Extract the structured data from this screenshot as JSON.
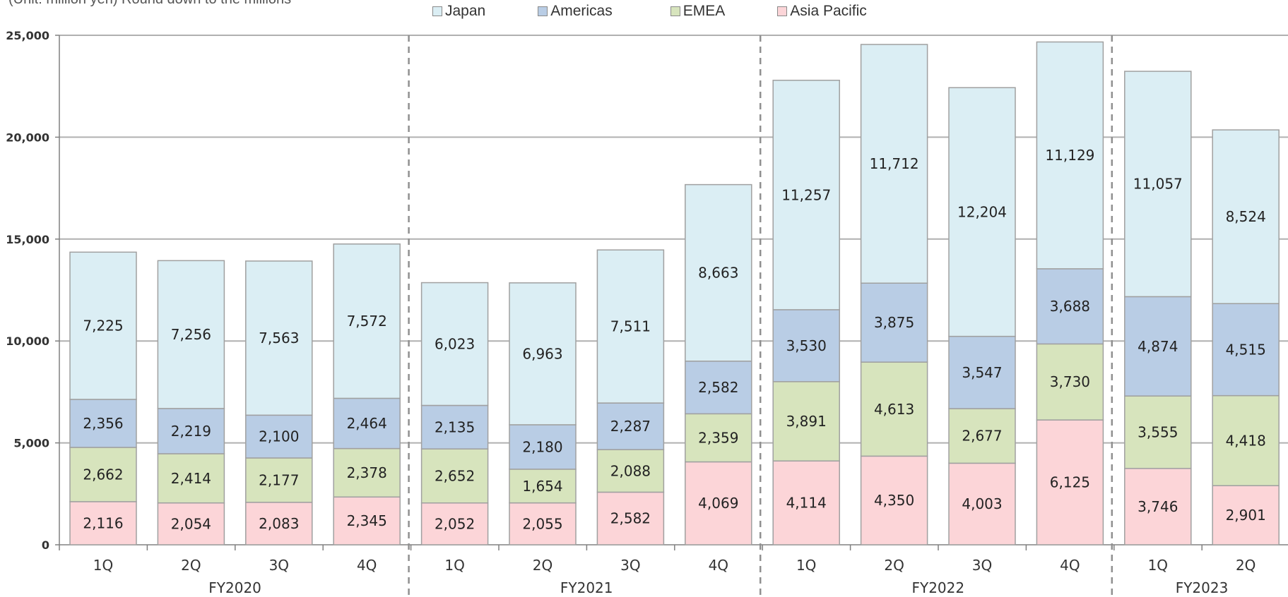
{
  "unit_note": "(Unit: million yen) Round down to the millions",
  "legend": [
    {
      "label": "Japan",
      "color": "#dbeef4"
    },
    {
      "label": "Americas",
      "color": "#b9cde5"
    },
    {
      "label": "EMEA",
      "color": "#d7e4bd"
    },
    {
      "label": "Asia Pacific",
      "color": "#fcd5d8"
    }
  ],
  "chart_data": {
    "type": "bar",
    "stacked": true,
    "title": "",
    "xlabel": "",
    "ylabel": "",
    "ylim": [
      0,
      25000
    ],
    "yticks": [
      "0",
      "5,000",
      "10,000",
      "15,000",
      "20,000",
      "25,000"
    ],
    "grid": true,
    "legend_position": "top",
    "groups": [
      {
        "label": "FY2020",
        "quarters": [
          "1Q",
          "2Q",
          "3Q",
          "4Q"
        ]
      },
      {
        "label": "FY2021",
        "quarters": [
          "1Q",
          "2Q",
          "3Q",
          "4Q"
        ]
      },
      {
        "label": "FY2022",
        "quarters": [
          "1Q",
          "2Q",
          "3Q",
          "4Q"
        ]
      },
      {
        "label": "FY2023",
        "quarters": [
          "1Q",
          "2Q"
        ]
      }
    ],
    "series": [
      {
        "name": "Asia Pacific",
        "color": "#fcd5d8",
        "values": [
          2116,
          2054,
          2083,
          2345,
          2052,
          2055,
          2582,
          4069,
          4114,
          4350,
          4003,
          6125,
          3746,
          2901
        ],
        "labels": [
          "2,116",
          "2,054",
          "2,083",
          "2,345",
          "2,052",
          "2,055",
          "2,582",
          "4,069",
          "4,114",
          "4,350",
          "4,003",
          "6,125",
          "3,746",
          "2,901"
        ]
      },
      {
        "name": "EMEA",
        "color": "#d7e4bd",
        "values": [
          2662,
          2414,
          2177,
          2378,
          2652,
          1654,
          2088,
          2359,
          3891,
          4613,
          2677,
          3730,
          3555,
          4418
        ],
        "labels": [
          "2,662",
          "2,414",
          "2,177",
          "2,378",
          "2,652",
          "1,654",
          "2,088",
          "2,359",
          "3,891",
          "4,613",
          "2,677",
          "3,730",
          "3,555",
          "4,418"
        ]
      },
      {
        "name": "Americas",
        "color": "#b9cde5",
        "values": [
          2356,
          2219,
          2100,
          2464,
          2135,
          2180,
          2287,
          2582,
          3530,
          3875,
          3547,
          3688,
          4874,
          4515
        ],
        "labels": [
          "2,356",
          "2,219",
          "2,100",
          "2,464",
          "2,135",
          "2,180",
          "2,287",
          "2,582",
          "3,530",
          "3,875",
          "3,547",
          "3,688",
          "4,874",
          "4,515"
        ]
      },
      {
        "name": "Japan",
        "color": "#dbeef4",
        "values": [
          7225,
          7256,
          7563,
          7572,
          6023,
          6963,
          7511,
          8663,
          11257,
          11712,
          12204,
          11129,
          11057,
          8524
        ],
        "labels": [
          "7,225",
          "7,256",
          "7,563",
          "7,572",
          "6,023",
          "6,963",
          "7,511",
          "8,663",
          "11,257",
          "11,712",
          "12,204",
          "11,129",
          "11,057",
          "8,524"
        ]
      }
    ]
  }
}
